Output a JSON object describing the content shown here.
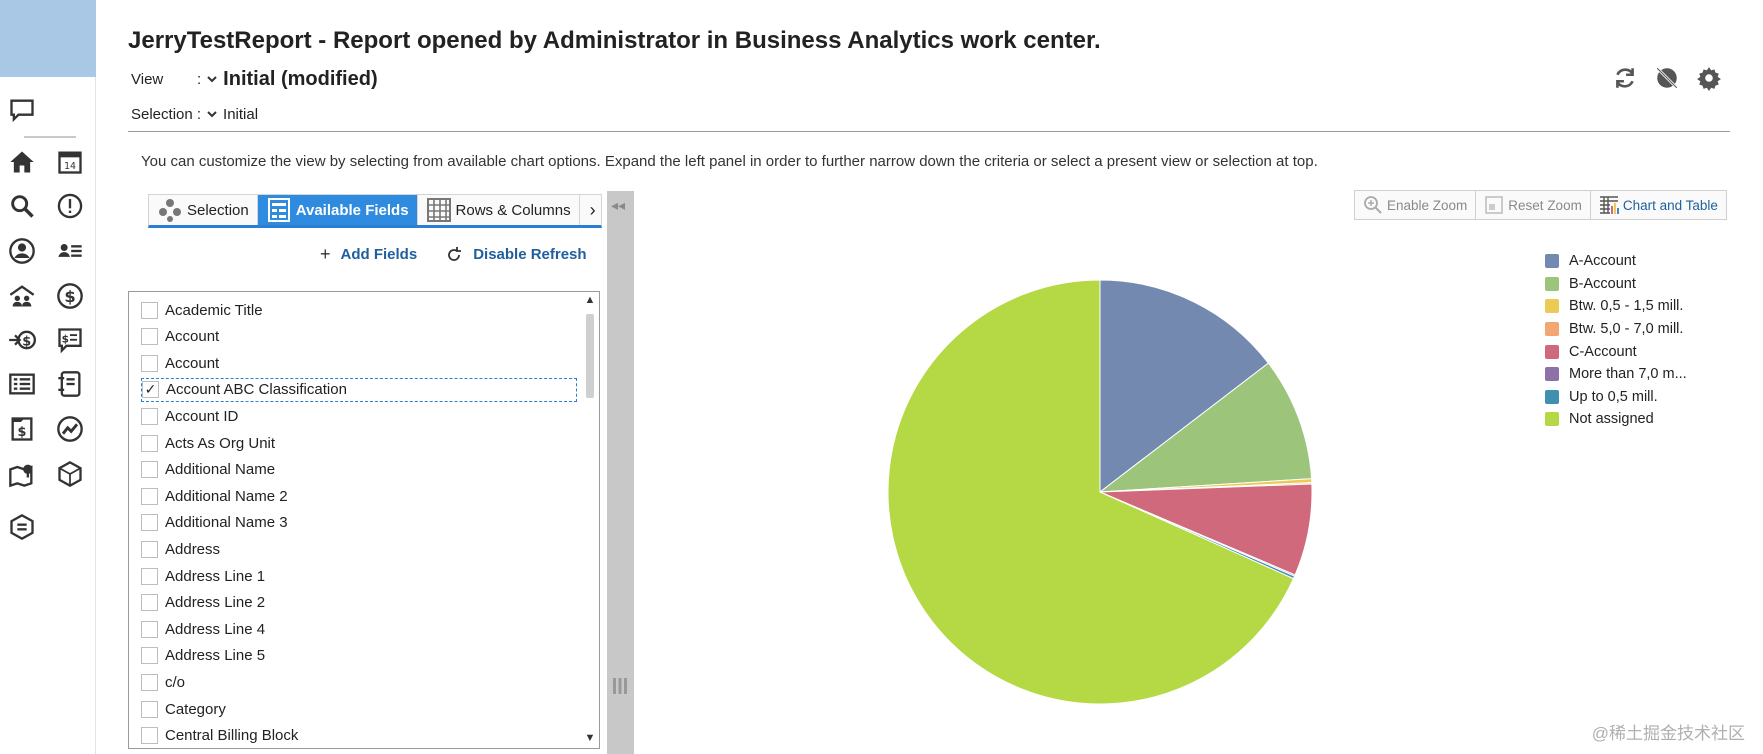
{
  "header": {
    "title": "JerryTestReport - Report opened by Administrator in Business Analytics work center.",
    "view_label": "View",
    "view_colon": ":",
    "view_value": "Initial (modified)",
    "selection_label": "Selection :",
    "selection_value": "Initial"
  },
  "hint": "You can customize the view by selecting from available chart options. Expand the left panel in order to further narrow down the criteria or select a present view or selection at top.",
  "tabs": [
    {
      "label": "Selection",
      "icon": "selection-icon"
    },
    {
      "label": "Available Fields",
      "icon": "fields-icon",
      "active": true
    },
    {
      "label": "Rows & Columns",
      "icon": "grid-icon"
    }
  ],
  "tabs_more": "›",
  "actions": {
    "add_fields": "Add Fields",
    "disable_refresh": "Disable Refresh"
  },
  "fields": [
    {
      "label": "Academic Title",
      "checked": false
    },
    {
      "label": "Account",
      "checked": false
    },
    {
      "label": "Account",
      "checked": false
    },
    {
      "label": "Account ABC Classification",
      "checked": true
    },
    {
      "label": "Account ID",
      "checked": false
    },
    {
      "label": "Acts As Org Unit",
      "checked": false
    },
    {
      "label": "Additional Name",
      "checked": false
    },
    {
      "label": "Additional Name 2",
      "checked": false
    },
    {
      "label": "Additional Name 3",
      "checked": false
    },
    {
      "label": "Address",
      "checked": false
    },
    {
      "label": "Address Line 1",
      "checked": false
    },
    {
      "label": "Address Line 2",
      "checked": false
    },
    {
      "label": "Address Line 4",
      "checked": false
    },
    {
      "label": "Address Line 5",
      "checked": false
    },
    {
      "label": "c/o",
      "checked": false
    },
    {
      "label": "Category",
      "checked": false
    },
    {
      "label": "Central Billing Block",
      "checked": false
    }
  ],
  "chart_toolbar": {
    "enable_zoom": "Enable Zoom",
    "reset_zoom": "Reset Zoom",
    "chart_and_table": "Chart and Table"
  },
  "chart_data": {
    "type": "pie",
    "slices": [
      {
        "name": "A-Account",
        "value": 14.6,
        "color": "#7389b0"
      },
      {
        "name": "B-Account",
        "value": 9.4,
        "color": "#9cc47a"
      },
      {
        "name": "Btw. 0,5 - 1,5 mill.",
        "value": 0.3,
        "color": "#ebcb55"
      },
      {
        "name": "Btw. 5,0 - 7,0 mill.",
        "value": 0.1,
        "color": "#f3a572"
      },
      {
        "name": "C-Account",
        "value": 7.0,
        "color": "#d1697c"
      },
      {
        "name": "More than 7,0 m...",
        "value": 0.1,
        "color": "#8c72a8"
      },
      {
        "name": "Up to 0,5 mill.",
        "value": 0.2,
        "color": "#3e8fb0"
      },
      {
        "name": "Not assigned",
        "value": 68.3,
        "color": "#b5d944"
      }
    ],
    "legend_position": "right"
  },
  "watermark": "@稀土掘金技术社区"
}
